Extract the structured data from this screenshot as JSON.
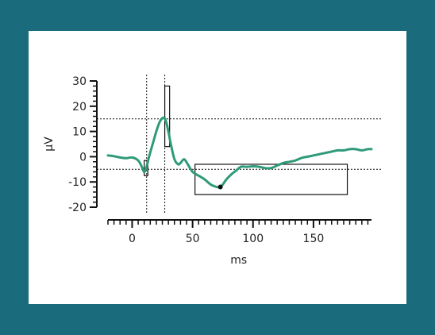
{
  "chart_data": {
    "type": "line",
    "title": "",
    "xlabel": "ms",
    "ylabel": "µV",
    "xlim": [
      -20,
      198
    ],
    "ylim": [
      -20,
      30
    ],
    "xticks": [
      0,
      50,
      100,
      150
    ],
    "xtick_labels": [
      "0",
      "50",
      "100",
      "150"
    ],
    "yticks": [
      30,
      20,
      10,
      0,
      -10,
      -20
    ],
    "ytick_labels": [
      "30",
      "20",
      "10",
      "0",
      "-10",
      "-20"
    ],
    "grid": false,
    "line_color": "#2e9a7a",
    "series": [
      {
        "name": "",
        "x": [
          -20,
          -15,
          -10,
          -5,
          0,
          5,
          8,
          10,
          12,
          14,
          17,
          20,
          23,
          26,
          28,
          30,
          32,
          35,
          38,
          40,
          43,
          46,
          50,
          55,
          60,
          65,
          70,
          73,
          75,
          78,
          82,
          86,
          90,
          95,
          100,
          105,
          110,
          115,
          120,
          125,
          130,
          135,
          140,
          145,
          150,
          155,
          160,
          165,
          170,
          175,
          180,
          185,
          190,
          195,
          198
        ],
        "y": [
          0.5,
          0.2,
          -0.3,
          -0.6,
          -0.3,
          -1.5,
          -4,
          -6,
          -4,
          0,
          5,
          10,
          14,
          15.5,
          14,
          10,
          5,
          -1,
          -3,
          -2.5,
          -1,
          -3,
          -6,
          -7.5,
          -9,
          -11,
          -12,
          -12,
          -11,
          -9,
          -7,
          -5.5,
          -4,
          -4,
          -3.8,
          -4,
          -4.5,
          -4.5,
          -3.5,
          -2.5,
          -2,
          -1.5,
          -0.5,
          0,
          0.5,
          1,
          1.5,
          2,
          2.5,
          2.5,
          3,
          3,
          2.5,
          3,
          3
        ]
      }
    ],
    "reference_lines": {
      "vertical": [
        12,
        27
      ],
      "horizontal": [
        15,
        -5
      ]
    },
    "measurement_windows": [
      {
        "x": [
          10,
          13
        ],
        "y": [
          -7.5,
          -1.5
        ]
      },
      {
        "x": [
          27,
          31
        ],
        "y": [
          4,
          28
        ]
      },
      {
        "x": [
          52,
          178
        ],
        "y": [
          -15,
          -3
        ]
      }
    ],
    "peak_marker": {
      "x": 73,
      "y": -12
    }
  }
}
